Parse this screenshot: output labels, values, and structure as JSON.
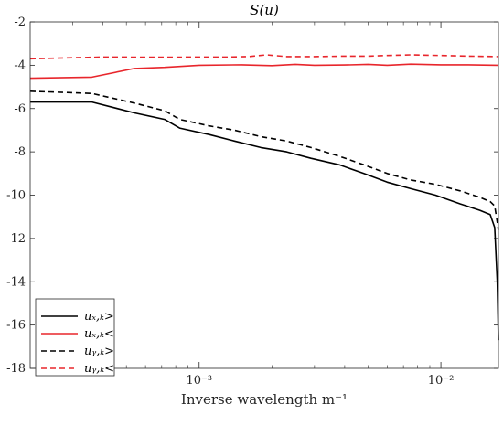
{
  "chart_data": {
    "type": "line",
    "title": "S(u)",
    "xlabel": "Inverse wavelength m⁻¹",
    "ylabel": "",
    "xscale": "log",
    "xlim": [
      0.0002,
      0.0173
    ],
    "ylim": [
      -18,
      -2
    ],
    "yticks": [
      -2,
      -4,
      -6,
      -8,
      -10,
      -12,
      -14,
      -16,
      -18
    ],
    "xticks": [
      {
        "value": 0.001,
        "label": "10⁻³"
      },
      {
        "value": 0.01,
        "label": "10⁻²"
      }
    ],
    "legend_position": "bottom-left",
    "series": [
      {
        "name": "uₓ,ₖ>",
        "color": "#000000",
        "dash": "solid",
        "x": [
          0.0002,
          0.00036,
          0.00054,
          0.00072,
          0.00083,
          0.0011,
          0.0014,
          0.0018,
          0.0023,
          0.0029,
          0.0038,
          0.0048,
          0.006,
          0.0075,
          0.0095,
          0.012,
          0.0145,
          0.016,
          0.0167,
          0.0171,
          0.0173
        ],
        "y": [
          -5.7,
          -5.7,
          -6.2,
          -6.5,
          -6.9,
          -7.2,
          -7.5,
          -7.8,
          -8.0,
          -8.3,
          -8.6,
          -9.0,
          -9.4,
          -9.7,
          -10.0,
          -10.4,
          -10.7,
          -10.9,
          -11.5,
          -14.0,
          -16.7
        ]
      },
      {
        "name": "uₓ,ₖ<",
        "color": "#e8262c",
        "dash": "solid",
        "x": [
          0.0002,
          0.00036,
          0.00054,
          0.00072,
          0.001,
          0.0015,
          0.002,
          0.0025,
          0.003,
          0.004,
          0.005,
          0.006,
          0.0075,
          0.01,
          0.013,
          0.0173
        ],
        "y": [
          -4.6,
          -4.55,
          -4.15,
          -4.1,
          -4.0,
          -3.98,
          -4.02,
          -3.96,
          -4.0,
          -3.99,
          -3.96,
          -4.0,
          -3.95,
          -3.98,
          -3.98,
          -4.0
        ]
      },
      {
        "name": "uᵧ,ₖ>",
        "color": "#000000",
        "dash": "dashed",
        "x": [
          0.0002,
          0.00036,
          0.00054,
          0.00072,
          0.00083,
          0.0011,
          0.0014,
          0.0018,
          0.0023,
          0.0029,
          0.0038,
          0.0048,
          0.006,
          0.0075,
          0.0095,
          0.012,
          0.0145,
          0.016,
          0.0167,
          0.0173
        ],
        "y": [
          -5.2,
          -5.3,
          -5.75,
          -6.1,
          -6.5,
          -6.8,
          -7.0,
          -7.3,
          -7.5,
          -7.8,
          -8.2,
          -8.6,
          -9.0,
          -9.3,
          -9.5,
          -9.8,
          -10.1,
          -10.3,
          -10.5,
          -11.6
        ]
      },
      {
        "name": "uᵧ,ₖ<",
        "color": "#e8262c",
        "dash": "dashed",
        "x": [
          0.0002,
          0.0004,
          0.0007,
          0.001,
          0.0013,
          0.0016,
          0.0019,
          0.0023,
          0.003,
          0.004,
          0.005,
          0.006,
          0.0075,
          0.01,
          0.013,
          0.0173
        ],
        "y": [
          -3.7,
          -3.62,
          -3.63,
          -3.62,
          -3.62,
          -3.6,
          -3.52,
          -3.6,
          -3.6,
          -3.58,
          -3.58,
          -3.55,
          -3.52,
          -3.55,
          -3.58,
          -3.6
        ]
      }
    ]
  }
}
